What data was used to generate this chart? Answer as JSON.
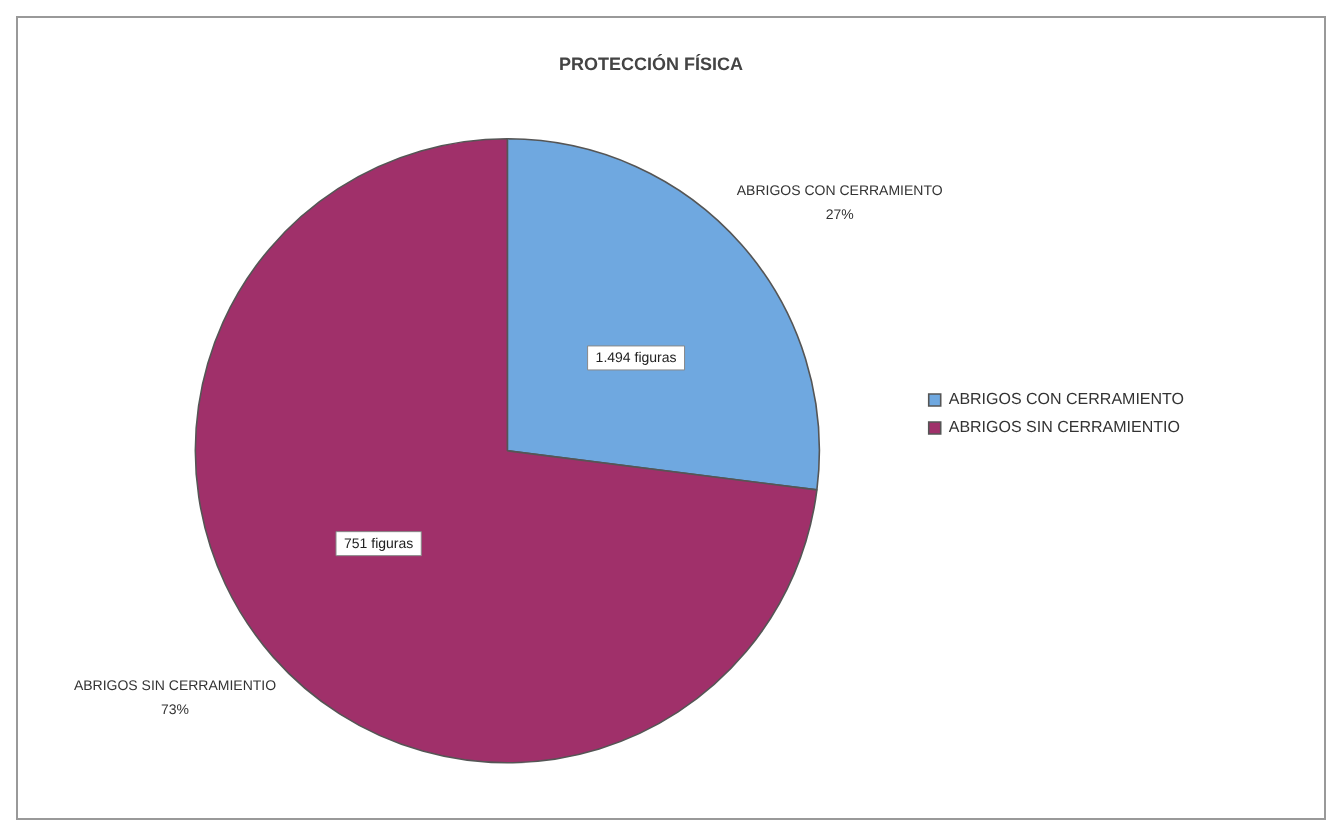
{
  "chart_data": {
    "type": "pie",
    "title": "PROTECCIÓN FÍSICA",
    "categories": [
      "ABRIGOS CON CERRAMIENTO",
      "ABRIGOS SIN CERRAMIENTIO"
    ],
    "values": [
      27,
      73
    ],
    "value_labels": [
      "27%",
      "73%"
    ],
    "colors": [
      "#6fa8e0",
      "#a0306a"
    ],
    "annotations": [
      "1.494 figuras",
      "751 figuras"
    ],
    "legend": "right"
  }
}
